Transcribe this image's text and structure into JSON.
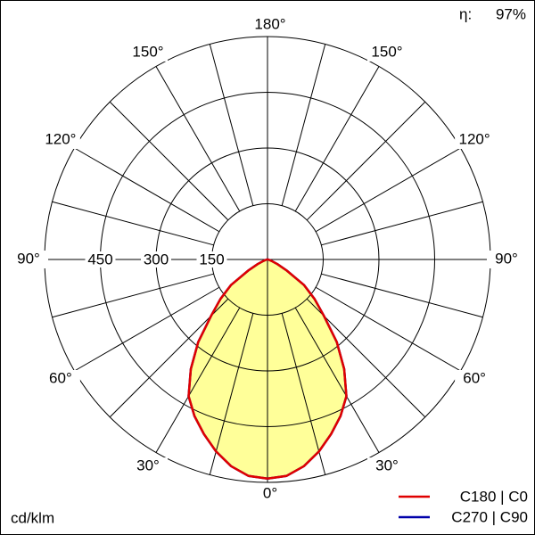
{
  "chart_data": {
    "type": "polar",
    "unit": "cd/klm",
    "efficiency_label": "η:",
    "efficiency": "97%",
    "angles": [
      0,
      5,
      10,
      15,
      20,
      25,
      30,
      35,
      40,
      45,
      50,
      55,
      60,
      65,
      70,
      75,
      80,
      85,
      90
    ],
    "series": [
      {
        "name": "C270 | C90",
        "color": "#0000aa",
        "values": [
          590,
          585,
          565,
          535,
          500,
          465,
          425,
          360,
          290,
          215,
          165,
          120,
          60,
          30,
          12,
          5,
          2,
          0,
          0
        ]
      },
      {
        "name": "C180 | C0",
        "color": "#e00000",
        "values": [
          590,
          585,
          565,
          535,
          500,
          465,
          425,
          360,
          290,
          215,
          165,
          120,
          60,
          30,
          12,
          5,
          2,
          0,
          0
        ]
      }
    ],
    "fill_color": "#ffff99",
    "rlim": [
      0,
      600
    ],
    "rticks": [
      150,
      300,
      450
    ],
    "angle_ticks": [
      {
        "value": 0,
        "label": "0°"
      },
      {
        "value": 30,
        "label": "30°"
      },
      {
        "value": 60,
        "label": "60°"
      },
      {
        "value": 90,
        "label": "90°"
      },
      {
        "value": 120,
        "label": "120°"
      },
      {
        "value": 150,
        "label": "150°"
      },
      {
        "value": 180,
        "label": "180°"
      }
    ]
  }
}
